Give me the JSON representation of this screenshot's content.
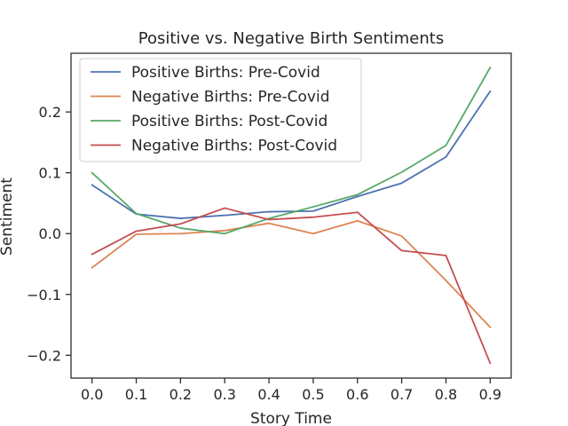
{
  "chart_data": {
    "type": "line",
    "title": "Positive vs. Negative Birth Sentiments",
    "xlabel": "Story Time",
    "ylabel": "Sentiment",
    "xlim": [
      -0.0475,
      0.9475
    ],
    "ylim": [
      -0.2375,
      0.2965
    ],
    "x": [
      0.0,
      0.1,
      0.2,
      0.3,
      0.4,
      0.5,
      0.6,
      0.7,
      0.8,
      0.9
    ],
    "xticks": [
      0.0,
      0.1,
      0.2,
      0.3,
      0.4,
      0.5,
      0.6,
      0.7,
      0.8,
      0.9
    ],
    "xtick_labels": [
      "0.0",
      "0.1",
      "0.2",
      "0.3",
      "0.4",
      "0.5",
      "0.6",
      "0.7",
      "0.8",
      "0.9"
    ],
    "yticks": [
      -0.2,
      -0.1,
      0.0,
      0.1,
      0.2
    ],
    "ytick_labels": [
      "−0.2",
      "−0.1",
      "0.0",
      "0.1",
      "0.2"
    ],
    "grid": false,
    "legend_position": "top-left",
    "series": [
      {
        "name": "Positive Births: Pre-Covid",
        "color": "#4c72b0",
        "values": [
          0.08,
          0.032,
          0.025,
          0.03,
          0.036,
          0.037,
          0.061,
          0.083,
          0.126,
          0.234
        ]
      },
      {
        "name": "Negative Births: Pre-Covid",
        "color": "#dd8452",
        "values": [
          -0.056,
          -0.001,
          0.0,
          0.005,
          0.017,
          0.0,
          0.021,
          -0.004,
          -0.077,
          -0.154
        ]
      },
      {
        "name": "Positive Births: Post-Covid",
        "color": "#55a868",
        "values": [
          0.1,
          0.033,
          0.009,
          0.0,
          0.025,
          0.044,
          0.064,
          0.101,
          0.145,
          0.273
        ]
      },
      {
        "name": "Negative Births: Post-Covid",
        "color": "#c44e52",
        "values": [
          -0.034,
          0.004,
          0.016,
          0.042,
          0.023,
          0.027,
          0.035,
          -0.028,
          -0.036,
          -0.213
        ]
      }
    ]
  }
}
